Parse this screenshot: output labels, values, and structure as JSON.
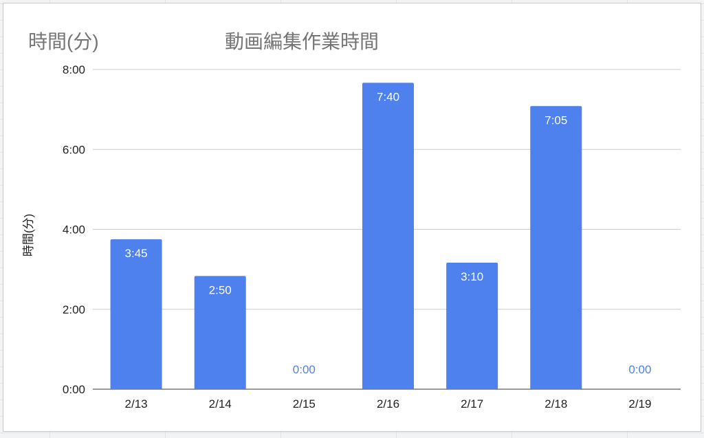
{
  "chart_data": {
    "type": "bar",
    "title": "動画編集作業時間",
    "corner_label": "時間(分)",
    "ylabel": "時間(分)",
    "xlabel": "",
    "categories": [
      "2/13",
      "2/14",
      "2/15",
      "2/16",
      "2/17",
      "2/18",
      "2/19"
    ],
    "series": [
      {
        "values": [
          225,
          170,
          0,
          460,
          190,
          425,
          0
        ],
        "labels": [
          "3:45",
          "2:50",
          "0:00",
          "7:40",
          "3:10",
          "7:05",
          "0:00"
        ]
      }
    ],
    "ylim": [
      0,
      480
    ],
    "yticks": [
      0,
      120,
      240,
      360,
      480
    ],
    "ytick_labels": [
      "0:00",
      "2:00",
      "4:00",
      "6:00",
      "8:00"
    ],
    "grid": true,
    "legend": "none",
    "colors": {
      "bar": "#4f81ee",
      "label_inside": "#ffffff",
      "label_outside": "#4f81ee",
      "grid": "#cccccc",
      "axis_text": "#222222",
      "title": "#757575"
    }
  }
}
